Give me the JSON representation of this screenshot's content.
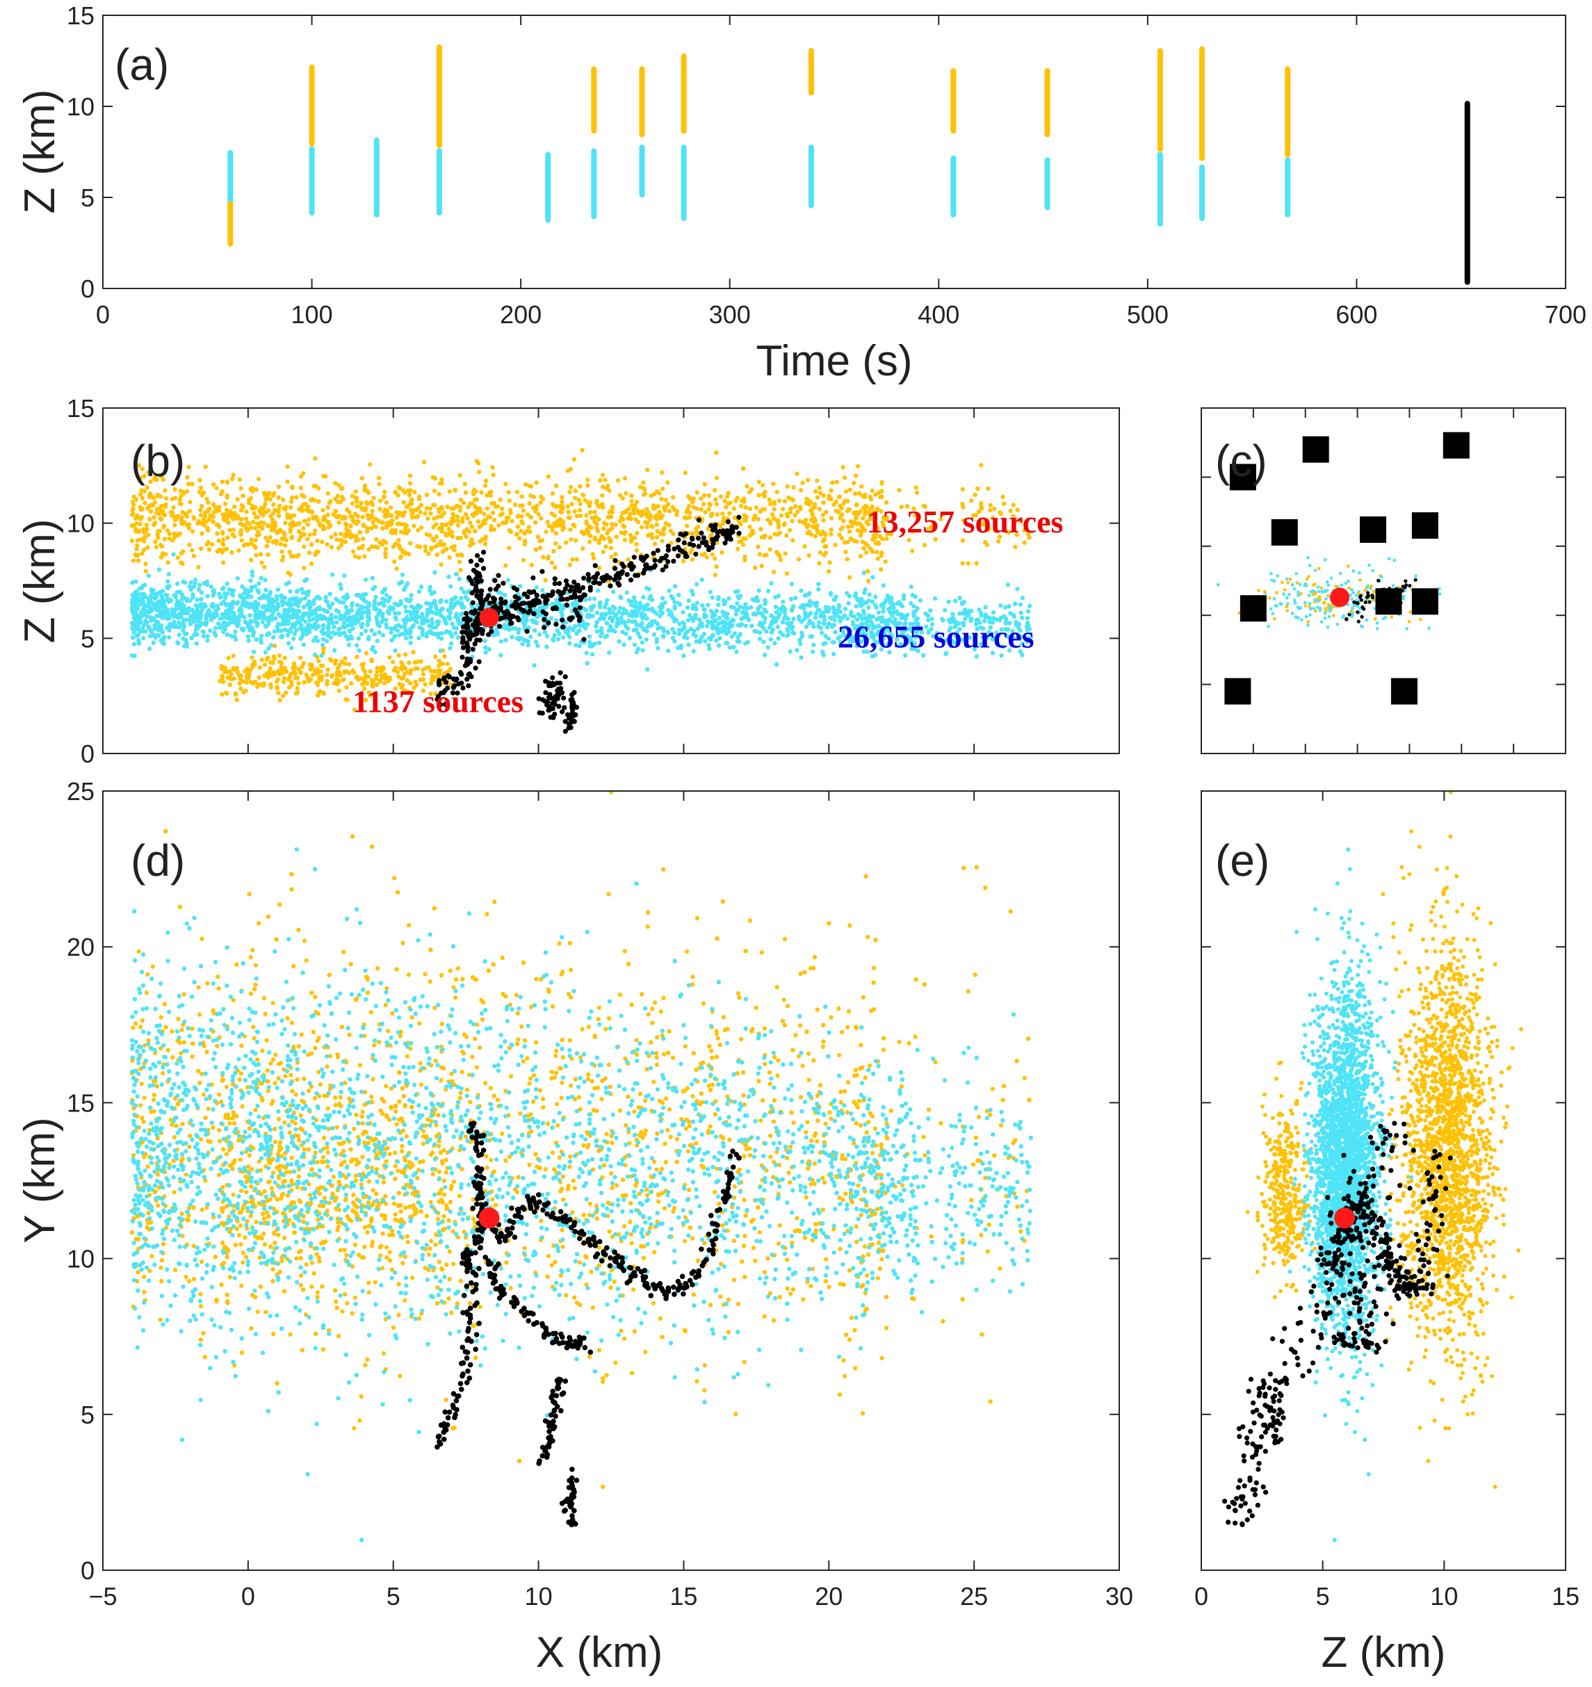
{
  "colors": {
    "orange": "#FFC107",
    "cyan": "#4FE3F7",
    "black": "#000000",
    "red": "#FF1A1A",
    "annot_red": "#EE0000",
    "annot_blue": "#0000DD"
  },
  "chart_data": [
    {
      "id": "a",
      "type": "scatter",
      "panel_label": "(a)",
      "xlabel": "Time (s)",
      "ylabel": "Z (km)",
      "xlim": [
        0,
        700
      ],
      "ylim": [
        0,
        15
      ],
      "xticks": [
        0,
        100,
        200,
        300,
        400,
        500,
        600,
        700
      ],
      "yticks": [
        0,
        5,
        10,
        15
      ],
      "xtick_labels": [
        "0",
        "100",
        "200",
        "300",
        "400",
        "500",
        "600",
        "700"
      ],
      "ytick_labels": [
        "0",
        "5",
        "10",
        "15"
      ],
      "events": [
        {
          "time": 61,
          "cyan": [
            4.5,
            7.6
          ],
          "orange": [
            2.3,
            4.8
          ]
        },
        {
          "time": 100,
          "cyan": [
            4.0,
            7.8
          ],
          "orange": [
            7.8,
            12.3
          ]
        },
        {
          "time": 131,
          "cyan": [
            3.9,
            8.3
          ],
          "orange": null
        },
        {
          "time": 161,
          "cyan": [
            4.0,
            7.7
          ],
          "orange": [
            7.7,
            13.4
          ]
        },
        {
          "time": 213,
          "cyan": [
            3.6,
            7.5
          ],
          "orange": null
        },
        {
          "time": 235,
          "cyan": [
            3.8,
            7.7
          ],
          "orange": [
            8.5,
            12.2
          ]
        },
        {
          "time": 258,
          "cyan": [
            5.0,
            7.9
          ],
          "orange": [
            8.3,
            12.2
          ]
        },
        {
          "time": 278,
          "cyan": [
            3.7,
            7.9
          ],
          "orange": [
            8.5,
            12.9
          ]
        },
        {
          "time": 339,
          "cyan": [
            4.4,
            7.9
          ],
          "orange": [
            10.6,
            13.2
          ]
        },
        {
          "time": 407,
          "cyan": [
            3.9,
            7.3
          ],
          "orange": [
            8.5,
            12.1
          ]
        },
        {
          "time": 452,
          "cyan": [
            4.3,
            7.2
          ],
          "orange": [
            8.3,
            12.1
          ]
        },
        {
          "time": 506,
          "cyan": [
            3.4,
            7.5
          ],
          "orange": [
            7.5,
            13.2
          ]
        },
        {
          "time": 526,
          "cyan": [
            3.7,
            6.8
          ],
          "orange": [
            7.0,
            13.3
          ]
        },
        {
          "time": 567,
          "cyan": [
            3.9,
            7.2
          ],
          "orange": [
            7.2,
            12.2
          ]
        }
      ],
      "black_event": {
        "time": 653,
        "range": [
          0.2,
          10.3
        ]
      }
    },
    {
      "id": "b",
      "type": "scatter",
      "panel_label": "(b)",
      "xlabel": "",
      "ylabel": "Z (km)",
      "xlim": [
        -5,
        30
      ],
      "ylim": [
        0,
        15
      ],
      "yticks": [
        0,
        5,
        10,
        15
      ],
      "ytick_labels": [
        "0",
        "5",
        "10",
        "15"
      ],
      "annotations": [
        {
          "text": "13,257 sources",
          "x": 21.3,
          "y": 9.6,
          "color": "annot_red"
        },
        {
          "text": "26,655 sources",
          "x": 20.3,
          "y": 4.6,
          "color": "annot_blue"
        },
        {
          "text": "1137 sources",
          "x": 3.6,
          "y": 1.8,
          "color": "annot_red"
        }
      ],
      "origin": {
        "x": 8.3,
        "z": 5.9
      }
    },
    {
      "id": "c",
      "type": "scatter",
      "panel_label": "(c)",
      "xlim": [
        -5,
        30
      ],
      "ylim": [
        0,
        25
      ],
      "stations": [
        {
          "x": -1.0,
          "y": 20.0
        },
        {
          "x": 6.0,
          "y": 22.0
        },
        {
          "x": 3.0,
          "y": 16.0
        },
        {
          "x": 0.0,
          "y": 10.5
        },
        {
          "x": -1.5,
          "y": 4.5
        },
        {
          "x": 11.5,
          "y": 16.2
        },
        {
          "x": 16.5,
          "y": 16.5
        },
        {
          "x": 13.0,
          "y": 11.0
        },
        {
          "x": 16.5,
          "y": 11.0
        },
        {
          "x": 14.5,
          "y": 4.5
        },
        {
          "x": 19.5,
          "y": 22.3
        }
      ],
      "origin": {
        "x": 8.3,
        "y": 11.3
      }
    },
    {
      "id": "d",
      "type": "scatter",
      "panel_label": "(d)",
      "xlabel": "X (km)",
      "ylabel": "Y (km)",
      "xlim": [
        -5,
        30
      ],
      "ylim": [
        0,
        25
      ],
      "xticks": [
        -5,
        0,
        5,
        10,
        15,
        20,
        25,
        30
      ],
      "yticks": [
        0,
        5,
        10,
        15,
        20,
        25
      ],
      "xtick_labels": [
        "−5",
        "0",
        "5",
        "10",
        "15",
        "20",
        "25",
        "30"
      ],
      "ytick_labels": [
        "0",
        "5",
        "10",
        "15",
        "20",
        "25"
      ],
      "origin": {
        "x": 8.3,
        "y": 11.3
      },
      "black_path_1": [
        [
          6.5,
          4.0
        ],
        [
          7.0,
          5.0
        ],
        [
          7.5,
          6.5
        ],
        [
          7.6,
          8.0
        ],
        [
          7.8,
          9.6
        ],
        [
          7.4,
          10.0
        ],
        [
          8.0,
          10.5
        ],
        [
          8.0,
          11.5
        ],
        [
          7.9,
          12.3
        ],
        [
          8.0,
          13.5
        ],
        [
          7.7,
          14.3
        ]
      ],
      "black_path_2": [
        [
          8.3,
          11.3
        ],
        [
          8.8,
          10.6
        ],
        [
          9.5,
          11.7
        ],
        [
          10.0,
          11.8
        ],
        [
          11.0,
          11.2
        ],
        [
          11.8,
          10.5
        ],
        [
          12.5,
          10.0
        ],
        [
          13.2,
          9.6
        ],
        [
          13.8,
          9.2
        ],
        [
          14.5,
          8.9
        ],
        [
          15.2,
          9.2
        ],
        [
          15.9,
          10.4
        ],
        [
          16.4,
          12.0
        ],
        [
          16.9,
          13.5
        ]
      ],
      "black_path_3": [
        [
          8.3,
          10.0
        ],
        [
          8.6,
          9.0
        ],
        [
          9.5,
          8.3
        ],
        [
          10.5,
          7.5
        ],
        [
          11.2,
          7.2
        ],
        [
          11.5,
          7.3
        ]
      ],
      "black_path_4": [
        [
          10.8,
          6.2
        ],
        [
          10.6,
          5.4
        ],
        [
          10.4,
          4.4
        ],
        [
          10.2,
          3.5
        ]
      ],
      "black_path_5": [
        [
          11.2,
          3.0
        ],
        [
          11.1,
          2.2
        ],
        [
          11.1,
          1.5
        ]
      ]
    },
    {
      "id": "e",
      "type": "scatter",
      "panel_label": "(e)",
      "xlabel": "Z (km)",
      "xlim": [
        0,
        15
      ],
      "ylim": [
        0,
        25
      ],
      "xticks": [
        0,
        5,
        10,
        15
      ],
      "xtick_labels": [
        "0",
        "5",
        "10",
        "15"
      ],
      "origin": {
        "z": 5.9,
        "y": 11.3
      }
    }
  ],
  "legend": null
}
